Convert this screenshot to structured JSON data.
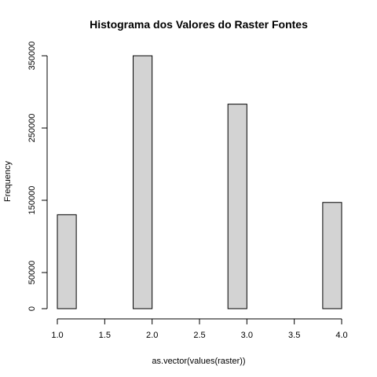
{
  "chart_data": {
    "type": "bar",
    "title": "Histograma dos Valores do Raster Fontes",
    "xlabel": "as.vector(values(raster))",
    "ylabel": "Frequency",
    "bins": [
      {
        "x0": 1.0,
        "x1": 1.2,
        "count": 130000
      },
      {
        "x0": 1.2,
        "x1": 1.4,
        "count": 0
      },
      {
        "x0": 1.4,
        "x1": 1.6,
        "count": 0
      },
      {
        "x0": 1.6,
        "x1": 1.8,
        "count": 0
      },
      {
        "x0": 1.8,
        "x1": 2.0,
        "count": 350000
      },
      {
        "x0": 2.0,
        "x1": 2.2,
        "count": 0
      },
      {
        "x0": 2.2,
        "x1": 2.4,
        "count": 0
      },
      {
        "x0": 2.4,
        "x1": 2.6,
        "count": 0
      },
      {
        "x0": 2.6,
        "x1": 2.8,
        "count": 0
      },
      {
        "x0": 2.8,
        "x1": 3.0,
        "count": 283000
      },
      {
        "x0": 3.0,
        "x1": 3.2,
        "count": 0
      },
      {
        "x0": 3.2,
        "x1": 3.4,
        "count": 0
      },
      {
        "x0": 3.4,
        "x1": 3.6,
        "count": 0
      },
      {
        "x0": 3.6,
        "x1": 3.8,
        "count": 0
      },
      {
        "x0": 3.8,
        "x1": 4.0,
        "count": 147000
      }
    ],
    "xlim": [
      1.0,
      4.0
    ],
    "ylim": [
      0,
      350000
    ],
    "xticks": [
      1.0,
      1.5,
      2.0,
      2.5,
      3.0,
      3.5,
      4.0
    ],
    "xtick_labels": [
      "1.0",
      "1.5",
      "2.0",
      "2.5",
      "3.0",
      "3.5",
      "4.0"
    ],
    "yticks": [
      0,
      50000,
      150000,
      250000,
      350000
    ],
    "ytick_labels": [
      "0",
      "50000",
      "150000",
      "250000",
      "350000"
    ],
    "grid": false,
    "bar_color": "#d3d3d3",
    "border_color": "#000000"
  }
}
